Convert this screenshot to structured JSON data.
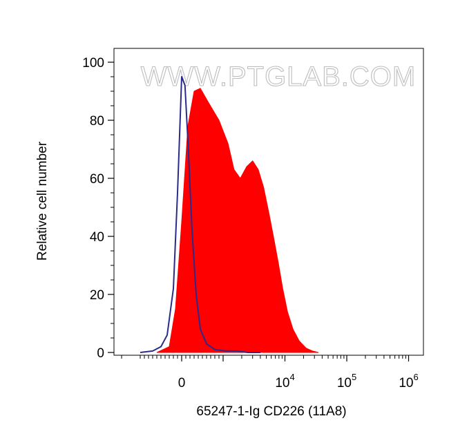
{
  "chart_data": {
    "type": "area",
    "xlabel": "65247-1-Ig CD226 (11A8)",
    "ylabel": "Relative cell number",
    "x_scale": "biexponential",
    "ylim": [
      0,
      100
    ],
    "y_ticks": [
      0,
      20,
      40,
      60,
      80,
      100
    ],
    "y_tick_labels": [
      "0",
      "20",
      "40",
      "60",
      "80",
      "100"
    ],
    "x_tick_labels": [
      {
        "base": "0",
        "exp": ""
      },
      {
        "base": "10",
        "exp": "4"
      },
      {
        "base": "10",
        "exp": "5"
      },
      {
        "base": "10",
        "exp": "6"
      }
    ],
    "watermark": "WWW.PTGLAB.COM",
    "grid": false,
    "series": [
      {
        "role": "isotype-control",
        "style": "line",
        "color": "#2a2a8c",
        "x": [
          -1000,
          -700,
          -500,
          -350,
          -200,
          -100,
          0,
          80,
          160,
          250,
          350,
          450,
          600,
          800,
          1100,
          1600,
          2500,
          4000
        ],
        "values": [
          0,
          0.5,
          2,
          6,
          22,
          55,
          95,
          92,
          70,
          42,
          20,
          8,
          3,
          1,
          0.5,
          0.5,
          0,
          0
        ]
      },
      {
        "role": "stained-sample",
        "style": "filled",
        "color": "#ff0000",
        "x": [
          -600,
          -300,
          -150,
          0,
          150,
          300,
          450,
          650,
          900,
          1200,
          1500,
          1900,
          2400,
          3000,
          3700,
          4500,
          5500,
          6500,
          7800,
          9200,
          11000,
          13500,
          17000,
          22000,
          28000,
          35000
        ],
        "values": [
          0,
          2,
          15,
          45,
          78,
          90,
          91,
          86,
          80,
          72,
          63,
          60,
          64,
          66,
          63,
          57,
          48,
          40,
          31,
          22,
          14,
          8,
          4,
          1.5,
          0.5,
          0
        ]
      }
    ]
  }
}
